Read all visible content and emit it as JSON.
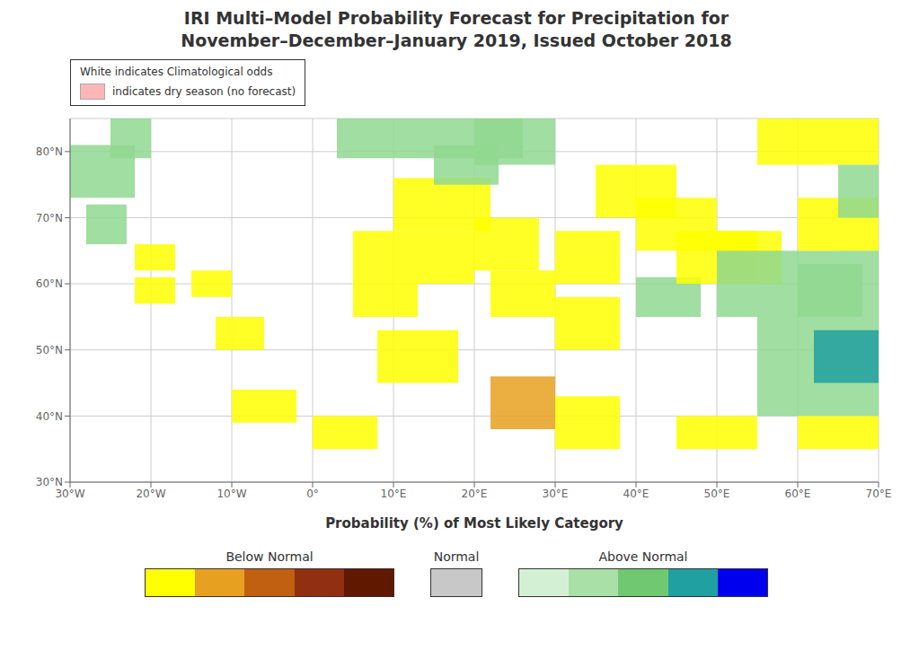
{
  "chart_data": {
    "type": "map",
    "title": "IRI Multi–Model Probability Forecast for Precipitation for\nNovember–December–January 2019, Issued October 2018",
    "xlabel": "Probability (%) of Most Likely Category",
    "xlim": [
      -30,
      70
    ],
    "ylim": [
      30,
      85
    ],
    "xticks": [
      {
        "value": -30,
        "label": "30°W"
      },
      {
        "value": -20,
        "label": "20°W"
      },
      {
        "value": -10,
        "label": "10°W"
      },
      {
        "value": 0,
        "label": "0°"
      },
      {
        "value": 10,
        "label": "10°E"
      },
      {
        "value": 20,
        "label": "20°E"
      },
      {
        "value": 30,
        "label": "30°E"
      },
      {
        "value": 40,
        "label": "40°E"
      },
      {
        "value": 50,
        "label": "50°E"
      },
      {
        "value": 60,
        "label": "60°E"
      },
      {
        "value": 70,
        "label": "70°E"
      }
    ],
    "yticks": [
      {
        "value": 30,
        "label": "30°N"
      },
      {
        "value": 40,
        "label": "40°N"
      },
      {
        "value": 50,
        "label": "50°N"
      },
      {
        "value": 60,
        "label": "60°N"
      },
      {
        "value": 70,
        "label": "70°N"
      },
      {
        "value": 80,
        "label": "80°N"
      }
    ],
    "grid": true,
    "annotations": [
      {
        "text": "White indicates Climatological odds"
      },
      {
        "text": "indicates dry season (no forecast)",
        "color": "#ffb6b6"
      }
    ],
    "colorbars": [
      {
        "name": "Below Normal",
        "colors": [
          "#ffff00",
          "#e8a020",
          "#c06010",
          "#903010",
          "#601800"
        ]
      },
      {
        "name": "Normal",
        "colors": [
          "#c8c8c8"
        ]
      },
      {
        "name": "Above Normal",
        "colors": [
          "#d4f0d4",
          "#a8e0a8",
          "#70c870",
          "#20a0a0",
          "#0000ee"
        ]
      }
    ],
    "patches": [
      {
        "x": -30,
        "y": 73,
        "w": 8,
        "h": 8,
        "color": "#90d890"
      },
      {
        "x": -25,
        "y": 79,
        "w": 5,
        "h": 6,
        "color": "#90d890"
      },
      {
        "x": -28,
        "y": 66,
        "w": 5,
        "h": 6,
        "color": "#90d890"
      },
      {
        "x": -22,
        "y": 62,
        "w": 5,
        "h": 4,
        "color": "#ffff00"
      },
      {
        "x": -22,
        "y": 57,
        "w": 5,
        "h": 4,
        "color": "#ffff00"
      },
      {
        "x": -15,
        "y": 58,
        "w": 5,
        "h": 4,
        "color": "#ffff00"
      },
      {
        "x": -12,
        "y": 50,
        "w": 6,
        "h": 5,
        "color": "#ffff00"
      },
      {
        "x": -10,
        "y": 39,
        "w": 8,
        "h": 5,
        "color": "#ffff00"
      },
      {
        "x": 0,
        "y": 35,
        "w": 8,
        "h": 5,
        "color": "#ffff00"
      },
      {
        "x": 5,
        "y": 60,
        "w": 15,
        "h": 8,
        "color": "#ffff00"
      },
      {
        "x": 5,
        "y": 55,
        "w": 8,
        "h": 5,
        "color": "#ffff00"
      },
      {
        "x": 8,
        "y": 45,
        "w": 10,
        "h": 8,
        "color": "#ffff00"
      },
      {
        "x": 10,
        "y": 68,
        "w": 12,
        "h": 8,
        "color": "#ffff00"
      },
      {
        "x": 15,
        "y": 75,
        "w": 8,
        "h": 6,
        "color": "#90d890"
      },
      {
        "x": 20,
        "y": 78,
        "w": 10,
        "h": 7,
        "color": "#90d890"
      },
      {
        "x": 20,
        "y": 62,
        "w": 8,
        "h": 8,
        "color": "#ffff00"
      },
      {
        "x": 22,
        "y": 55,
        "w": 8,
        "h": 7,
        "color": "#ffff00"
      },
      {
        "x": 22,
        "y": 38,
        "w": 8,
        "h": 8,
        "color": "#e8a020"
      },
      {
        "x": 30,
        "y": 60,
        "w": 8,
        "h": 8,
        "color": "#ffff00"
      },
      {
        "x": 30,
        "y": 50,
        "w": 8,
        "h": 8,
        "color": "#ffff00"
      },
      {
        "x": 30,
        "y": 35,
        "w": 8,
        "h": 8,
        "color": "#ffff00"
      },
      {
        "x": 35,
        "y": 70,
        "w": 10,
        "h": 8,
        "color": "#ffff00"
      },
      {
        "x": 40,
        "y": 65,
        "w": 10,
        "h": 8,
        "color": "#ffff00"
      },
      {
        "x": 40,
        "y": 55,
        "w": 8,
        "h": 6,
        "color": "#90d890"
      },
      {
        "x": 45,
        "y": 60,
        "w": 10,
        "h": 8,
        "color": "#ffff00"
      },
      {
        "x": 50,
        "y": 60,
        "w": 8,
        "h": 8,
        "color": "#ffff00"
      },
      {
        "x": 50,
        "y": 55,
        "w": 15,
        "h": 10,
        "color": "#90d890"
      },
      {
        "x": 60,
        "y": 65,
        "w": 10,
        "h": 8,
        "color": "#ffff00"
      },
      {
        "x": 60,
        "y": 55,
        "w": 8,
        "h": 8,
        "color": "#90d890"
      },
      {
        "x": 55,
        "y": 78,
        "w": 15,
        "h": 7,
        "color": "#ffff00"
      },
      {
        "x": 55,
        "y": 40,
        "w": 15,
        "h": 15,
        "color": "#90d890"
      },
      {
        "x": 60,
        "y": 35,
        "w": 10,
        "h": 5,
        "color": "#ffff00"
      },
      {
        "x": 45,
        "y": 35,
        "w": 10,
        "h": 5,
        "color": "#ffff00"
      },
      {
        "x": 3,
        "y": 79,
        "w": 15,
        "h": 6,
        "color": "#90d890"
      },
      {
        "x": 18,
        "y": 79,
        "w": 8,
        "h": 6,
        "color": "#90d890"
      },
      {
        "x": 65,
        "y": 70,
        "w": 5,
        "h": 8,
        "color": "#90d890"
      },
      {
        "x": 65,
        "y": 55,
        "w": 5,
        "h": 10,
        "color": "#90d890"
      },
      {
        "x": 62,
        "y": 45,
        "w": 8,
        "h": 8,
        "color": "#20a0a0"
      }
    ]
  }
}
